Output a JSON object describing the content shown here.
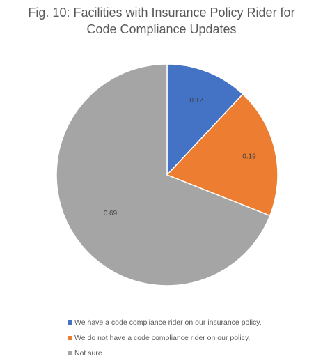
{
  "chart_data": {
    "type": "pie",
    "title_lines": [
      "Fig. 10: Facilities with Insurance Policy Rider for",
      "Code Compliance Updates"
    ],
    "series": [
      {
        "values": [
          0.12,
          0.19,
          0.69
        ]
      }
    ],
    "categories": [
      "We have a code compliance rider on our insurance policy.",
      "We do not have a code compliance rider on our policy.",
      "Not sure"
    ],
    "slices": [
      {
        "label": "We have a code compliance rider on our insurance policy.",
        "value": 0.12,
        "data_label": "0.12",
        "color": "#4472C4"
      },
      {
        "label": "We do not have a code compliance rider on our policy.",
        "value": 0.19,
        "data_label": "0.19",
        "color": "#ED7D31"
      },
      {
        "label": "Not sure",
        "value": 0.69,
        "data_label": "0.69",
        "color": "#A5A5A5"
      }
    ],
    "start_angle_deg": 0,
    "direction": "clockwise",
    "legend_position": "bottom",
    "slice_border_color": "#FFFFFF"
  }
}
